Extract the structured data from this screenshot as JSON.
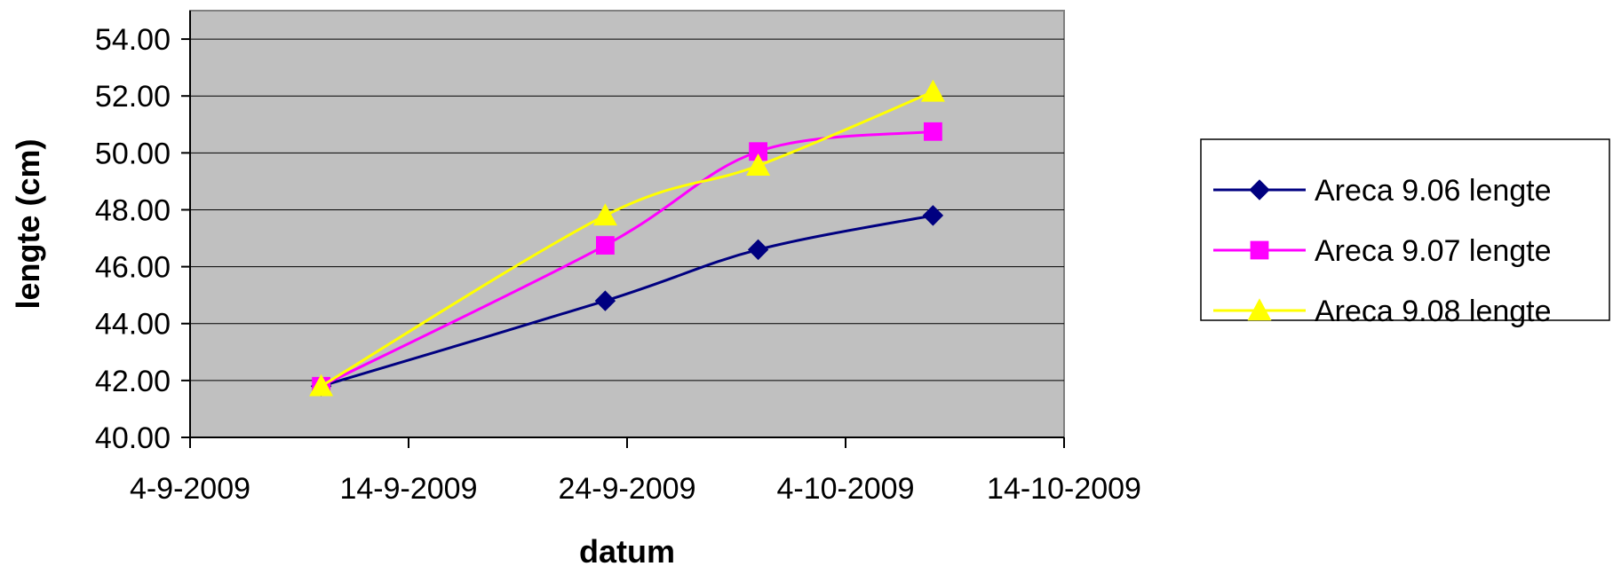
{
  "chart_data": {
    "type": "line",
    "title": "",
    "xlabel": "datum",
    "ylabel": "lengte (cm)",
    "x_ticks": [
      "4-9-2009",
      "14-9-2009",
      "24-9-2009",
      "4-10-2009",
      "14-10-2009"
    ],
    "xlim": [
      "2009-09-04",
      "2009-10-14"
    ],
    "y_ticks": [
      "40.00",
      "42.00",
      "44.00",
      "46.00",
      "48.00",
      "50.00",
      "52.00",
      "54.00"
    ],
    "ylim": [
      40,
      55
    ],
    "grid": "horizontal",
    "legend_position": "right",
    "x": [
      "2009-09-10",
      "2009-09-23",
      "2009-09-30",
      "2009-10-08"
    ],
    "series": [
      {
        "name": "Areca 9.06 lengte",
        "values": [
          41.8,
          44.8,
          46.6,
          47.8
        ],
        "color": "#000080",
        "marker": "diamond"
      },
      {
        "name": "Areca 9.07 lengte",
        "values": [
          41.8,
          46.75,
          50.05,
          50.75
        ],
        "color": "#FF00FF",
        "marker": "square"
      },
      {
        "name": "Areca 9.08 lengte",
        "values": [
          41.8,
          47.8,
          49.55,
          52.15
        ],
        "color": "#FFFF00",
        "marker": "triangle"
      }
    ],
    "colors": {
      "plot_background": "#C0C0C0",
      "gridline": "#000000",
      "frame": "#808080"
    }
  }
}
